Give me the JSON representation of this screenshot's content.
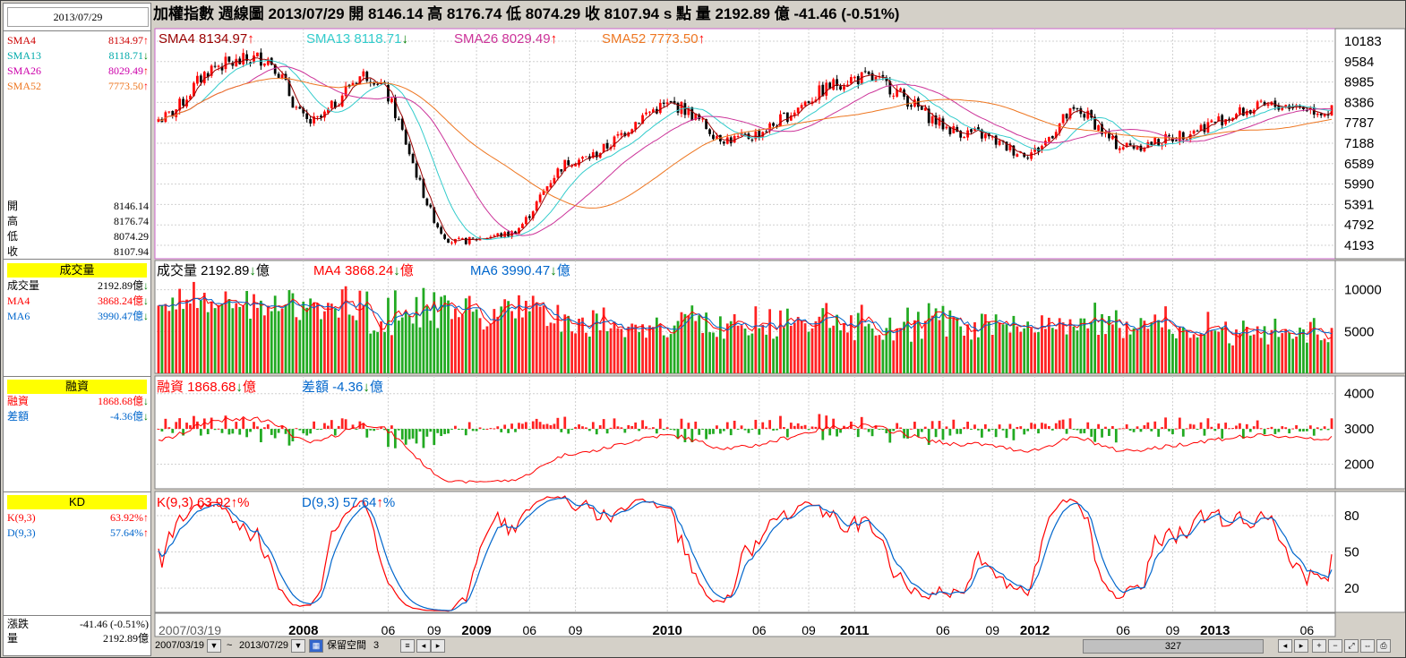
{
  "left": {
    "date": "2013/07/29",
    "sma": [
      {
        "label": "SMA4",
        "value": "8134.97",
        "dir": "up",
        "color": "#cc0000"
      },
      {
        "label": "SMA13",
        "value": "8118.71",
        "dir": "dn",
        "color": "#00aaaa"
      },
      {
        "label": "SMA26",
        "value": "8029.49",
        "dir": "up",
        "color": "#cc00aa"
      },
      {
        "label": "SMA52",
        "value": "7773.50",
        "dir": "up",
        "color": "#ee7722"
      }
    ],
    "ohlc": [
      {
        "label": "開",
        "value": "8146.14"
      },
      {
        "label": "高",
        "value": "8176.74"
      },
      {
        "label": "低",
        "value": "8074.29"
      },
      {
        "label": "收",
        "value": "8107.94"
      }
    ],
    "vol_header": "成交量",
    "vol_rows": [
      {
        "label": "成交量",
        "value": "2192.89億",
        "dir": "dn",
        "color": "#000000"
      },
      {
        "label": "MA4",
        "value": "3868.24億",
        "dir": "dn",
        "color": "#ff0000"
      },
      {
        "label": "MA6",
        "value": "3990.47億",
        "dir": "dn",
        "color": "#0066cc"
      }
    ],
    "margin_header": "融資",
    "margin_rows": [
      {
        "label": "融資",
        "value": "1868.68億",
        "dir": "dn",
        "color": "#ff0000"
      },
      {
        "label": "差額",
        "value": "-4.36億",
        "dir": "dn",
        "color": "#0066cc"
      }
    ],
    "kd_header": "KD",
    "kd_rows": [
      {
        "label": "K(9,3)",
        "value": "63.92%",
        "dir": "up",
        "color": "#ff0000"
      },
      {
        "label": "D(9,3)",
        "value": "57.64%",
        "dir": "up",
        "color": "#0066cc"
      }
    ],
    "change_label": "漲跌",
    "change_value": "-41.46 (-0.51%)",
    "qty_label": "量",
    "qty_value": "2192.89億"
  },
  "title": "加權指數  週線圖  2013/07/29  開 8146.14  高 8176.74  低 8074.29  收 8107.94 s 點  量 2192.89 億  -41.46 (-0.51%)",
  "legend": {
    "price": [
      {
        "text": "SMA4 8134.97",
        "dir": "up",
        "color": "#990000"
      },
      {
        "text": "SMA13 8118.71",
        "dir": "dn",
        "color": "#33cccc"
      },
      {
        "text": "SMA26 8029.49",
        "dir": "up",
        "color": "#cc3399"
      },
      {
        "text": "SMA52 7773.50",
        "dir": "up",
        "color": "#ee7722"
      }
    ],
    "volume": [
      {
        "text": "成交量 2192.89",
        "suffix": "億",
        "dir": "dn",
        "color": "#000000"
      },
      {
        "text": "MA4 3868.24",
        "suffix": "億",
        "dir": "dn",
        "color": "#ff0000"
      },
      {
        "text": "MA6 3990.47",
        "suffix": "億",
        "dir": "dn",
        "color": "#0066cc"
      }
    ],
    "margin": [
      {
        "text": "融資 1868.68",
        "suffix": "億",
        "dir": "dn",
        "color": "#ff0000"
      },
      {
        "text": "差額 -4.36",
        "suffix": "億",
        "dir": "dn",
        "color": "#0066cc"
      }
    ],
    "kd": [
      {
        "text": "K(9,3) 63.92",
        "suffix": "%",
        "dir": "up",
        "color": "#ff0000"
      },
      {
        "text": "D(9,3) 57.64",
        "suffix": "%",
        "dir": "up",
        "color": "#0066cc"
      }
    ]
  },
  "bottom": {
    "start_date": "2007/03/19",
    "tilde": "~",
    "end_date": "2013/07/29",
    "reserve_label": "保留空間",
    "reserve_value": "3",
    "scroll_value": "327"
  },
  "colors": {
    "up": "#ff0000",
    "down": "#008000",
    "panel_border": "#cc66cc",
    "grid": "#c8c8c8"
  },
  "chart_data": [
    {
      "type": "candlestick",
      "title": "加權指數 週線圖",
      "y_ticks": [
        4193,
        4792,
        5391,
        5990,
        6589,
        7188,
        7787,
        8386,
        8985,
        9584,
        10183
      ],
      "ylim": [
        3800,
        10550
      ],
      "x_labels": [
        "2007/03/19",
        "2008",
        "06",
        "09",
        "2009",
        "06",
        "09",
        "2010",
        "06",
        "09",
        "2011",
        "06",
        "09",
        "2012",
        "06",
        "09",
        "2013",
        "06"
      ],
      "key_points": [
        {
          "date": "2007/03",
          "close": 7900
        },
        {
          "date": "2007/07",
          "close": 9500
        },
        {
          "date": "2007/10",
          "close": 9700
        },
        {
          "date": "2008/01",
          "close": 7800
        },
        {
          "date": "2008/05",
          "close": 9200
        },
        {
          "date": "2008/11",
          "close": 4300
        },
        {
          "date": "2009/02",
          "close": 4500
        },
        {
          "date": "2009/06",
          "close": 6700
        },
        {
          "date": "2010/01",
          "close": 8300
        },
        {
          "date": "2010/06",
          "close": 7300
        },
        {
          "date": "2011/01",
          "close": 9100
        },
        {
          "date": "2011/08",
          "close": 7500
        },
        {
          "date": "2011/12",
          "close": 6900
        },
        {
          "date": "2012/03",
          "close": 8100
        },
        {
          "date": "2012/06",
          "close": 7100
        },
        {
          "date": "2013/05",
          "close": 8300
        },
        {
          "date": "2013/07",
          "close": 8108
        }
      ],
      "series": [
        {
          "name": "SMA4",
          "color": "#990000",
          "last": 8134.97
        },
        {
          "name": "SMA13",
          "color": "#33cccc",
          "last": 8118.71
        },
        {
          "name": "SMA26",
          "color": "#cc3399",
          "last": 8029.49
        },
        {
          "name": "SMA52",
          "color": "#ee7722",
          "last": 7773.5
        }
      ]
    },
    {
      "type": "bar",
      "title": "成交量",
      "y_ticks": [
        5000,
        10000
      ],
      "ylim": [
        0,
        13500
      ],
      "unit": "億",
      "series": [
        {
          "name": "成交量",
          "last": 2192.89
        },
        {
          "name": "MA4",
          "color": "#ff0000",
          "last": 3868.24
        },
        {
          "name": "MA6",
          "color": "#0066cc",
          "last": 3990.47
        }
      ]
    },
    {
      "type": "bar",
      "title": "融資",
      "y_ticks": [
        2000,
        3000,
        4000
      ],
      "ylim": [
        1300,
        4500
      ],
      "unit": "億",
      "series": [
        {
          "name": "融資",
          "color": "#ff0000",
          "last": 1868.68
        },
        {
          "name": "差額",
          "last": -4.36
        }
      ]
    },
    {
      "type": "line",
      "title": "KD",
      "y_ticks": [
        20,
        50,
        80
      ],
      "ylim": [
        0,
        100
      ],
      "series": [
        {
          "name": "K(9,3)",
          "color": "#ff0000",
          "last": 63.92
        },
        {
          "name": "D(9,3)",
          "color": "#0066cc",
          "last": 57.64
        }
      ]
    }
  ]
}
